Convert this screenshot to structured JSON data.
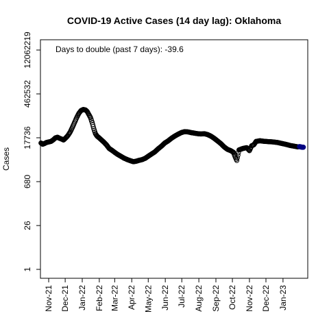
{
  "chart_data": {
    "type": "scatter",
    "title": "COVID-19 Active Cases (14 day lag): Oklahoma",
    "annotation": "Days to double (past 7 days): -39.6",
    "xlabel": "",
    "ylabel": "Cases",
    "y_scale": "log",
    "y_ticks": [
      1,
      26,
      680,
      17736,
      462532,
      12062219
    ],
    "y_tick_labels": [
      "1",
      "26",
      "680",
      "17736",
      "462532",
      "12062219"
    ],
    "x_ticks": [
      "2021-11-01",
      "2021-12-01",
      "2022-01-01",
      "2022-02-01",
      "2022-03-01",
      "2022-04-01",
      "2022-05-01",
      "2022-06-01",
      "2022-07-01",
      "2022-08-01",
      "2022-09-01",
      "2022-10-01",
      "2022-11-01",
      "2022-12-01",
      "2023-01-01"
    ],
    "x_tick_labels": [
      "Nov-21",
      "Dec-21",
      "Jan-22",
      "Feb-22",
      "Mar-22",
      "Apr-22",
      "May-22",
      "Jun-22",
      "Jul-22",
      "Aug-22",
      "Sep-22",
      "Oct-22",
      "Nov-22",
      "Dec-22",
      "Jan-23"
    ],
    "xlim": [
      "2021-10-17",
      "2023-02-15"
    ],
    "series": [
      {
        "marker": "open-circle",
        "color": "#000000",
        "points": [
          [
            "2021-10-18",
            12000
          ],
          [
            "2021-10-21",
            11000
          ],
          [
            "2021-10-24",
            11500
          ],
          [
            "2021-10-28",
            12500
          ],
          [
            "2021-11-01",
            13000
          ],
          [
            "2021-11-05",
            13500
          ],
          [
            "2021-11-09",
            15000
          ],
          [
            "2021-11-13",
            17500
          ],
          [
            "2021-11-17",
            18500
          ],
          [
            "2021-11-21",
            17000
          ],
          [
            "2021-11-25",
            16000
          ],
          [
            "2021-11-28",
            15000
          ],
          [
            "2021-12-02",
            17500
          ],
          [
            "2021-12-06",
            21000
          ],
          [
            "2021-12-10",
            27000
          ],
          [
            "2021-12-14",
            38000
          ],
          [
            "2021-12-18",
            55000
          ],
          [
            "2021-12-22",
            80000
          ],
          [
            "2021-12-26",
            110000
          ],
          [
            "2021-12-30",
            135000
          ],
          [
            "2022-01-03",
            145000
          ],
          [
            "2022-01-07",
            140000
          ],
          [
            "2022-01-10",
            125000
          ],
          [
            "2022-01-13",
            100000
          ],
          [
            "2022-01-16",
            80000
          ],
          [
            "2022-01-19",
            55000
          ],
          [
            "2022-01-22",
            35000
          ],
          [
            "2022-01-25",
            24000
          ],
          [
            "2022-01-28",
            20000
          ],
          [
            "2022-02-01",
            17500
          ],
          [
            "2022-02-05",
            15000
          ],
          [
            "2022-02-09",
            13000
          ],
          [
            "2022-02-14",
            10500
          ],
          [
            "2022-02-19",
            8000
          ],
          [
            "2022-02-24",
            7000
          ],
          [
            "2022-03-01",
            6000
          ],
          [
            "2022-03-06",
            5200
          ],
          [
            "2022-03-12",
            4500
          ],
          [
            "2022-03-18",
            3900
          ],
          [
            "2022-03-24",
            3500
          ],
          [
            "2022-03-30",
            3200
          ],
          [
            "2022-04-04",
            3000
          ],
          [
            "2022-04-09",
            3100
          ],
          [
            "2022-04-14",
            3300
          ],
          [
            "2022-04-20",
            3500
          ],
          [
            "2022-04-26",
            3900
          ],
          [
            "2022-05-01",
            4500
          ],
          [
            "2022-05-07",
            5300
          ],
          [
            "2022-05-13",
            6200
          ],
          [
            "2022-05-19",
            7800
          ],
          [
            "2022-05-25",
            9500
          ],
          [
            "2022-05-31",
            12000
          ],
          [
            "2022-06-06",
            14000
          ],
          [
            "2022-06-12",
            17000
          ],
          [
            "2022-06-18",
            20000
          ],
          [
            "2022-06-24",
            23000
          ],
          [
            "2022-06-30",
            26000
          ],
          [
            "2022-07-06",
            28000
          ],
          [
            "2022-07-12",
            27500
          ],
          [
            "2022-07-18",
            26000
          ],
          [
            "2022-07-24",
            25000
          ],
          [
            "2022-07-30",
            24000
          ],
          [
            "2022-08-05",
            23500
          ],
          [
            "2022-08-11",
            24000
          ],
          [
            "2022-08-17",
            22500
          ],
          [
            "2022-08-23",
            20000
          ],
          [
            "2022-08-29",
            17000
          ],
          [
            "2022-09-04",
            14000
          ],
          [
            "2022-09-10",
            11500
          ],
          [
            "2022-09-16",
            9000
          ],
          [
            "2022-09-22",
            7500
          ],
          [
            "2022-09-28",
            6800
          ],
          [
            "2022-10-03",
            6000
          ],
          [
            "2022-10-06",
            4300
          ],
          [
            "2022-10-09",
            3300
          ],
          [
            "2022-10-13",
            7200
          ],
          [
            "2022-10-20",
            8000
          ],
          [
            "2022-10-27",
            8500
          ],
          [
            "2022-11-01",
            6800
          ],
          [
            "2022-11-05",
            9800
          ],
          [
            "2022-11-09",
            10500
          ],
          [
            "2022-11-13",
            13500
          ],
          [
            "2022-11-20",
            14200
          ],
          [
            "2022-11-28",
            13600
          ],
          [
            "2022-12-06",
            13300
          ],
          [
            "2022-12-14",
            13000
          ],
          [
            "2022-12-22",
            12500
          ],
          [
            "2022-12-30",
            11600
          ],
          [
            "2023-01-07",
            10800
          ],
          [
            "2023-01-14",
            10000
          ],
          [
            "2023-01-21",
            9500
          ],
          [
            "2023-01-28",
            9000
          ]
        ]
      },
      {
        "marker": "filled-circle",
        "color": "#000080",
        "points": [
          [
            "2023-01-31",
            9200
          ],
          [
            "2023-02-01",
            9000
          ],
          [
            "2023-02-02",
            9100
          ],
          [
            "2023-02-03",
            8900
          ],
          [
            "2023-02-04",
            8800
          ],
          [
            "2023-02-05",
            8900
          ],
          [
            "2023-02-06",
            8700
          ],
          [
            "2023-02-07",
            8800
          ]
        ]
      }
    ]
  }
}
